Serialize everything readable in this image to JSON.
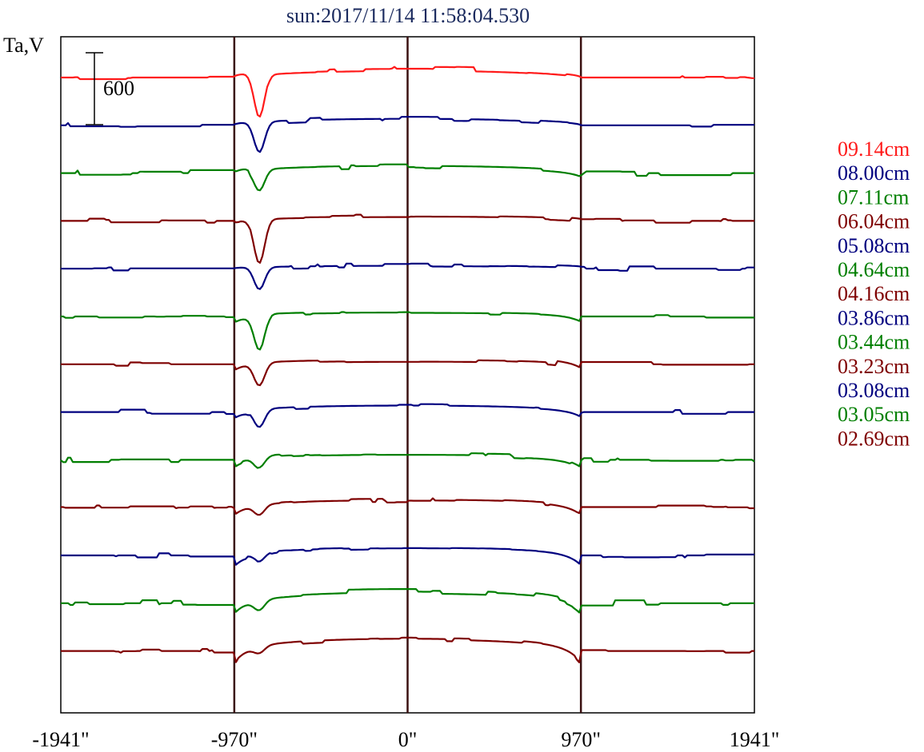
{
  "chart_data": {
    "type": "line",
    "title": "sun:2017/11/14 11:58:04.530",
    "ylabel": "Ta,V",
    "scale_bar_label": "600",
    "scale_bar_value": 600,
    "xlim": [
      -1941,
      1941
    ],
    "x_ticks": [
      {
        "value": -1941,
        "label": "-1941\""
      },
      {
        "value": -970,
        "label": "-970\""
      },
      {
        "value": 0,
        "label": "0\""
      },
      {
        "value": 970,
        "label": "970\""
      },
      {
        "value": 1941,
        "label": "1941\""
      }
    ],
    "vertical_lines": [
      -970,
      0,
      970
    ],
    "series": [
      {
        "name": "09.14cm",
        "color": "#ff1a1a",
        "dip_depth": 55,
        "limb_drop": 0,
        "dome": 12,
        "noise": 3
      },
      {
        "name": "08.00cm",
        "color": "#00007f",
        "dip_depth": 38,
        "limb_drop": 0,
        "dome": 9,
        "noise": 3
      },
      {
        "name": "07.11cm",
        "color": "#007f00",
        "dip_depth": 26,
        "limb_drop": 3,
        "dome": 10,
        "noise": 4
      },
      {
        "name": "06.04cm",
        "color": "#7f0000",
        "dip_depth": 55,
        "limb_drop": 0,
        "dome": 6,
        "noise": 3
      },
      {
        "name": "05.08cm",
        "color": "#00007f",
        "dip_depth": 28,
        "limb_drop": 0,
        "dome": 4,
        "noise": 3
      },
      {
        "name": "04.64cm",
        "color": "#007f00",
        "dip_depth": 42,
        "limb_drop": 7,
        "dome": 5,
        "noise": 2
      },
      {
        "name": "04.16cm",
        "color": "#7f0000",
        "dip_depth": 28,
        "limb_drop": 8,
        "dome": 6,
        "noise": 3
      },
      {
        "name": "03.86cm",
        "color": "#00007f",
        "dip_depth": 22,
        "limb_drop": 6,
        "dome": 9,
        "noise": 3
      },
      {
        "name": "03.44cm",
        "color": "#007f00",
        "dip_depth": 14,
        "limb_drop": 10,
        "dome": 7,
        "noise": 3
      },
      {
        "name": "03.23cm",
        "color": "#7f0000",
        "dip_depth": 12,
        "limb_drop": 10,
        "dome": 10,
        "noise": 3
      },
      {
        "name": "03.08cm",
        "color": "#00007f",
        "dip_depth": 10,
        "limb_drop": 13,
        "dome": 10,
        "noise": 3
      },
      {
        "name": "03.05cm",
        "color": "#007f00",
        "dip_depth": 12,
        "limb_drop": 12,
        "dome": 16,
        "noise": 4
      },
      {
        "name": "02.69cm",
        "color": "#7f0000",
        "dip_depth": 8,
        "limb_drop": 16,
        "dome": 17,
        "noise": 3
      }
    ]
  }
}
